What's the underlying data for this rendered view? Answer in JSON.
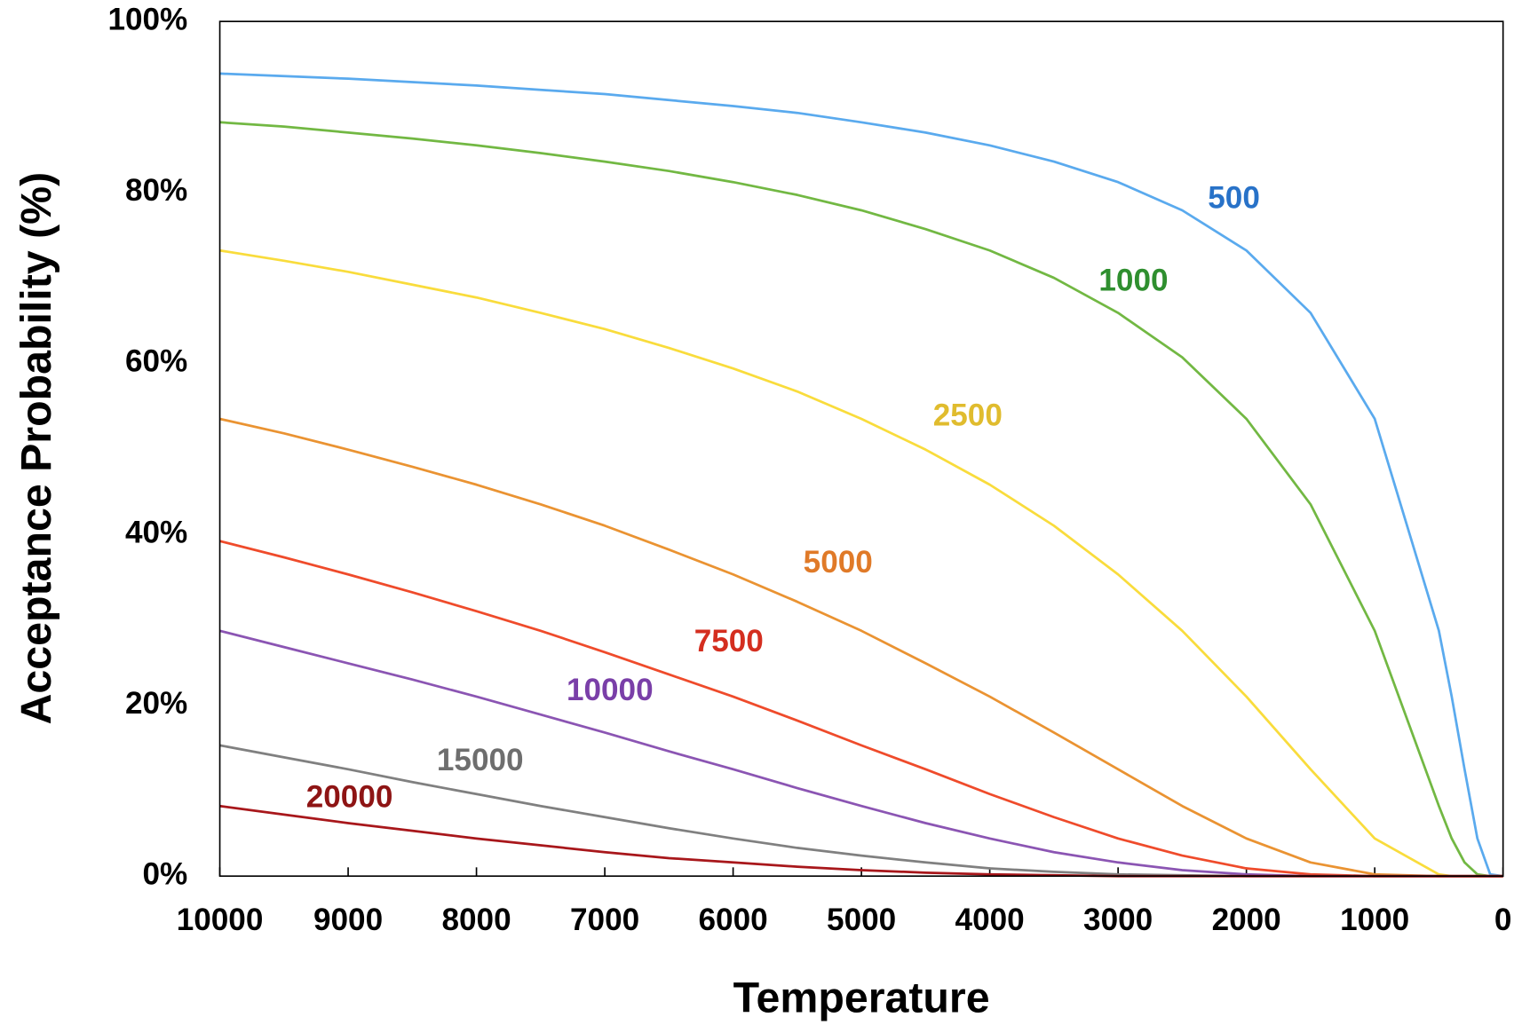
{
  "chart_data": {
    "type": "line",
    "x_label": "Temperature",
    "y_label": "Acceptance Probability (%)",
    "x": [
      10000,
      9500,
      9000,
      8500,
      8000,
      7500,
      7000,
      6500,
      6000,
      5500,
      5000,
      4500,
      4000,
      3500,
      3000,
      2500,
      2000,
      1500,
      1000,
      500,
      400,
      300,
      200,
      100,
      0
    ],
    "xlim": [
      10000,
      0
    ],
    "xticks": [
      10000,
      9000,
      8000,
      7000,
      6000,
      5000,
      4000,
      3000,
      2000,
      1000,
      0
    ],
    "ylim": [
      0,
      100
    ],
    "yticks": [
      {
        "value": 0,
        "label": "0%"
      },
      {
        "value": 20,
        "label": "20%"
      },
      {
        "value": 40,
        "label": "40%"
      },
      {
        "value": 60,
        "label": "60%"
      },
      {
        "value": 80,
        "label": "80%"
      },
      {
        "value": 100,
        "label": "100%"
      }
    ],
    "grid": false,
    "series": [
      {
        "name": "500",
        "color": "#5aaaee",
        "label_color": "#2872c8",
        "values": [
          93.9,
          93.6,
          93.3,
          92.9,
          92.5,
          92.0,
          91.5,
          90.8,
          90.1,
          89.3,
          88.2,
          87.0,
          85.5,
          83.6,
          81.2,
          77.9,
          73.2,
          65.9,
          53.5,
          28.7,
          21.0,
          12.5,
          4.4,
          0.2,
          0
        ]
      },
      {
        "name": "1000",
        "color": "#72b843",
        "label_color": "#2f8f2f",
        "values": [
          88.2,
          87.7,
          87.0,
          86.3,
          85.5,
          84.6,
          83.6,
          82.5,
          81.2,
          79.7,
          77.9,
          75.7,
          73.2,
          70.0,
          65.9,
          60.7,
          53.5,
          43.5,
          28.7,
          8.2,
          4.4,
          1.6,
          0.2,
          0,
          0
        ]
      },
      {
        "name": "2500",
        "color": "#f9dc3c",
        "label_color": "#e0bc2e",
        "values": [
          73.2,
          72.0,
          70.7,
          69.2,
          67.7,
          65.9,
          64.0,
          61.8,
          59.4,
          56.7,
          53.5,
          49.9,
          45.8,
          41.0,
          35.3,
          28.7,
          21.0,
          12.5,
          4.4,
          0.2,
          0,
          0,
          0,
          0,
          0
        ]
      },
      {
        "name": "5000",
        "color": "#ea9332",
        "label_color": "#e07a28",
        "values": [
          53.5,
          51.8,
          49.9,
          47.9,
          45.8,
          43.5,
          41.0,
          38.2,
          35.3,
          32.1,
          28.7,
          24.9,
          21.0,
          16.8,
          12.5,
          8.2,
          4.4,
          1.6,
          0.2,
          0,
          0,
          0,
          0,
          0,
          0
        ]
      },
      {
        "name": "7500",
        "color": "#ef4b2b",
        "label_color": "#d42e1f",
        "values": [
          39.2,
          37.3,
          35.3,
          33.2,
          31.0,
          28.7,
          26.2,
          23.6,
          21.0,
          18.2,
          15.3,
          12.5,
          9.6,
          6.9,
          4.4,
          2.4,
          0.9,
          0.2,
          0,
          0,
          0,
          0,
          0,
          0,
          0
        ]
      },
      {
        "name": "10000",
        "color": "#8b55b3",
        "label_color": "#7a3fa8",
        "values": [
          28.7,
          26.8,
          24.9,
          23.0,
          21.0,
          18.9,
          16.8,
          14.6,
          12.5,
          10.3,
          8.2,
          6.2,
          4.4,
          2.8,
          1.6,
          0.7,
          0.2,
          0,
          0,
          0,
          0,
          0,
          0,
          0,
          0
        ]
      },
      {
        "name": "15000",
        "color": "#808080",
        "label_color": "#6e6e6e",
        "values": [
          15.3,
          13.9,
          12.5,
          11.0,
          9.6,
          8.2,
          6.9,
          5.6,
          4.4,
          3.3,
          2.4,
          1.6,
          0.9,
          0.5,
          0.2,
          0.1,
          0,
          0,
          0,
          0,
          0,
          0,
          0,
          0,
          0
        ]
      },
      {
        "name": "20000",
        "color": "#a8171b",
        "label_color": "#8e1414",
        "values": [
          8.2,
          7.2,
          6.2,
          5.3,
          4.4,
          3.6,
          2.8,
          2.1,
          1.6,
          1.1,
          0.7,
          0.4,
          0.2,
          0.1,
          0,
          0,
          0,
          0,
          0,
          0,
          0,
          0,
          0,
          0,
          0
        ]
      }
    ]
  }
}
